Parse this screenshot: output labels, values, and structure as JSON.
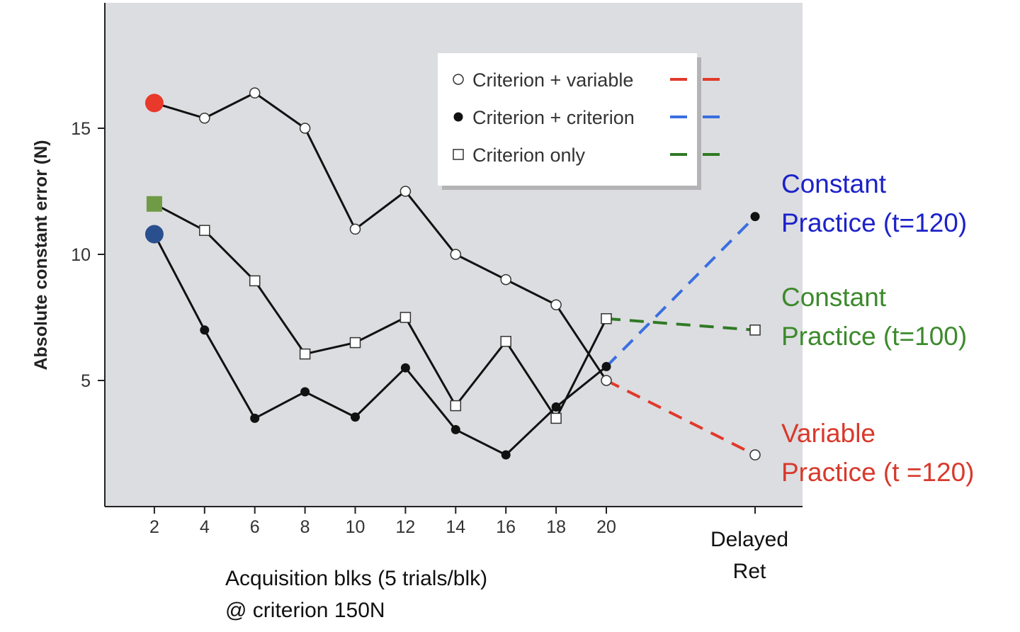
{
  "chart_data": {
    "type": "line",
    "ylabel": "Absolute constant error (N)",
    "xlabel_lines": [
      "Acquisition blks (5 trials/blk)",
      "@ criterion 150N"
    ],
    "delayed_label_lines": [
      "Delayed",
      "Ret"
    ],
    "x": [
      2,
      4,
      6,
      8,
      10,
      12,
      14,
      16,
      18,
      20
    ],
    "x_tick_labels": [
      "2",
      "4",
      "6",
      "8",
      "10",
      "12",
      "14",
      "16",
      "18",
      "20"
    ],
    "y_ticks": [
      5,
      10,
      15
    ],
    "ylim": [
      0,
      20
    ],
    "grid": false,
    "legend_position": "top-right",
    "series": [
      {
        "name": "Criterion + variable",
        "marker": "open-circle",
        "dash_color": "#e03a2c",
        "first_point_color": "#e8392b",
        "values": [
          16.0,
          15.4,
          16.4,
          15.0,
          11.0,
          12.5,
          10.0,
          9.0,
          8.0,
          5.0
        ],
        "delayed": 2.05
      },
      {
        "name": "Criterion + criterion",
        "marker": "filled-circle",
        "dash_color": "#3b6fe0",
        "first_point_color": "#2a4f8f",
        "values": [
          10.8,
          7.0,
          3.5,
          4.55,
          3.55,
          5.5,
          3.05,
          2.05,
          3.95,
          5.55
        ],
        "delayed": 11.5
      },
      {
        "name": "Criterion only",
        "marker": "open-square",
        "dash_color": "#2f7a25",
        "first_point_color": "#6f9a46",
        "values": [
          12.0,
          10.95,
          8.95,
          6.05,
          6.5,
          7.5,
          4.0,
          6.55,
          3.5,
          7.45
        ],
        "delayed": 7.0
      }
    ],
    "annotations": [
      {
        "lines": [
          "Constant",
          "Practice (t=120)"
        ],
        "color": "#1c22c8"
      },
      {
        "lines": [
          "Constant",
          "Practice (t=100)"
        ],
        "color": "#3c8a2c"
      },
      {
        "lines": [
          "Variable",
          "Practice (t =120)"
        ],
        "color": "#d8392c"
      }
    ]
  }
}
